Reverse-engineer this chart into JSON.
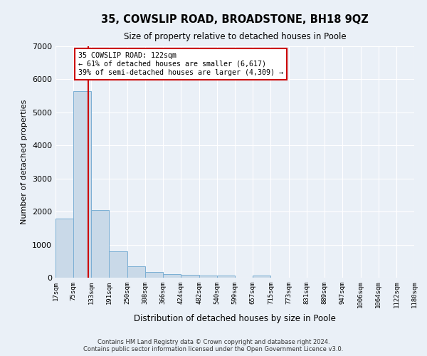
{
  "title": "35, COWSLIP ROAD, BROADSTONE, BH18 9QZ",
  "subtitle": "Size of property relative to detached houses in Poole",
  "xlabel": "Distribution of detached houses by size in Poole",
  "ylabel": "Number of detached properties",
  "bar_color": "#c9d9e8",
  "bar_edge_color": "#7bafd4",
  "vline_color": "#cc0000",
  "vline_x": 122,
  "bin_edges": [
    17,
    75,
    133,
    191,
    250,
    308,
    366,
    424,
    482,
    540,
    599,
    657,
    715,
    773,
    831,
    889,
    947,
    1006,
    1064,
    1122,
    1180
  ],
  "bar_heights": [
    1780,
    5650,
    2040,
    800,
    340,
    175,
    110,
    80,
    75,
    70,
    0,
    65,
    0,
    0,
    0,
    0,
    0,
    0,
    0,
    0
  ],
  "annotation_title": "35 COWSLIP ROAD: 122sqm",
  "annotation_line1": "← 61% of detached houses are smaller (6,617)",
  "annotation_line2": "39% of semi-detached houses are larger (4,309) →",
  "annotation_box_color": "#ffffff",
  "annotation_border_color": "#cc0000",
  "ylim": [
    0,
    7000
  ],
  "yticks": [
    0,
    1000,
    2000,
    3000,
    4000,
    5000,
    6000,
    7000
  ],
  "footer_line1": "Contains HM Land Registry data © Crown copyright and database right 2024.",
  "footer_line2": "Contains public sector information licensed under the Open Government Licence v3.0.",
  "bg_color": "#eaf0f7",
  "plot_bg_color": "#eaf0f7"
}
